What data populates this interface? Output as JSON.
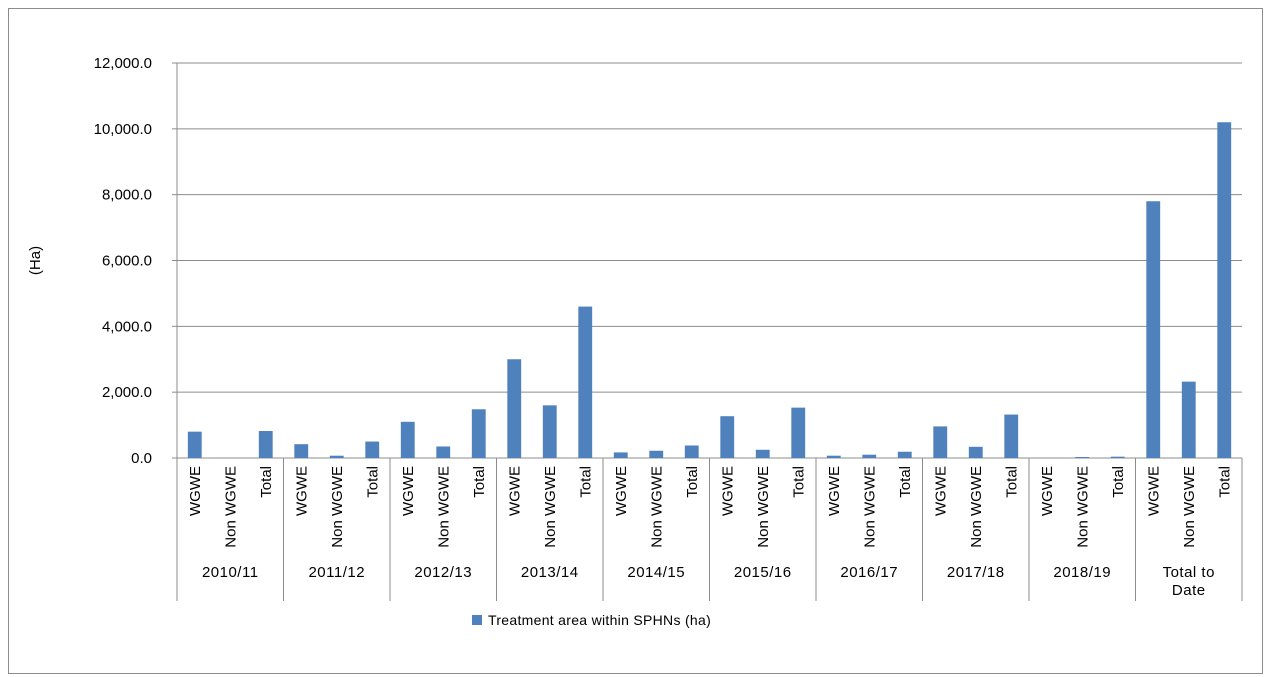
{
  "chart_data": {
    "type": "bar",
    "ylabel": "(Ha)",
    "ylim": [
      0,
      12000
    ],
    "yticks": [
      0,
      2000,
      4000,
      6000,
      8000,
      10000,
      12000
    ],
    "ytick_labels": [
      "0.0",
      "2,000.0",
      "4,000.0",
      "6,000.0",
      "8,000.0",
      "10,000.0",
      "12,000.0"
    ],
    "grid": true,
    "legend_position": "bottom",
    "bar_color": "#4f81bd",
    "groups": [
      {
        "label": "2010/11",
        "categories": [
          "WGWE",
          "Non WGWE",
          "Total"
        ],
        "values": [
          800,
          0,
          820
        ]
      },
      {
        "label": "2011/12",
        "categories": [
          "WGWE",
          "Non WGWE",
          "Total"
        ],
        "values": [
          420,
          70,
          500
        ]
      },
      {
        "label": "2012/13",
        "categories": [
          "WGWE",
          "Non WGWE",
          "Total"
        ],
        "values": [
          1100,
          350,
          1480
        ]
      },
      {
        "label": "2013/14",
        "categories": [
          "WGWE",
          "Non WGWE",
          "Total"
        ],
        "values": [
          3000,
          1600,
          4600
        ]
      },
      {
        "label": "2014/15",
        "categories": [
          "WGWE",
          "Non WGWE",
          "Total"
        ],
        "values": [
          170,
          220,
          380
        ]
      },
      {
        "label": "2015/16",
        "categories": [
          "WGWE",
          "Non WGWE",
          "Total"
        ],
        "values": [
          1270,
          250,
          1530
        ]
      },
      {
        "label": "2016/17",
        "categories": [
          "WGWE",
          "Non WGWE",
          "Total"
        ],
        "values": [
          70,
          100,
          190
        ]
      },
      {
        "label": "2017/18",
        "categories": [
          "WGWE",
          "Non WGWE",
          "Total"
        ],
        "values": [
          960,
          340,
          1320
        ]
      },
      {
        "label": "2018/19",
        "categories": [
          "WGWE",
          "Non WGWE",
          "Total"
        ],
        "values": [
          0,
          30,
          40
        ]
      },
      {
        "label": "Total to Date",
        "label_lines": [
          "Total to",
          "Date"
        ],
        "categories": [
          "WGWE",
          "Non WGWE",
          "Total"
        ],
        "values": [
          7800,
          2320,
          10200
        ]
      }
    ],
    "series": [
      {
        "name": "Treatment area within SPHNs (ha)"
      }
    ]
  }
}
